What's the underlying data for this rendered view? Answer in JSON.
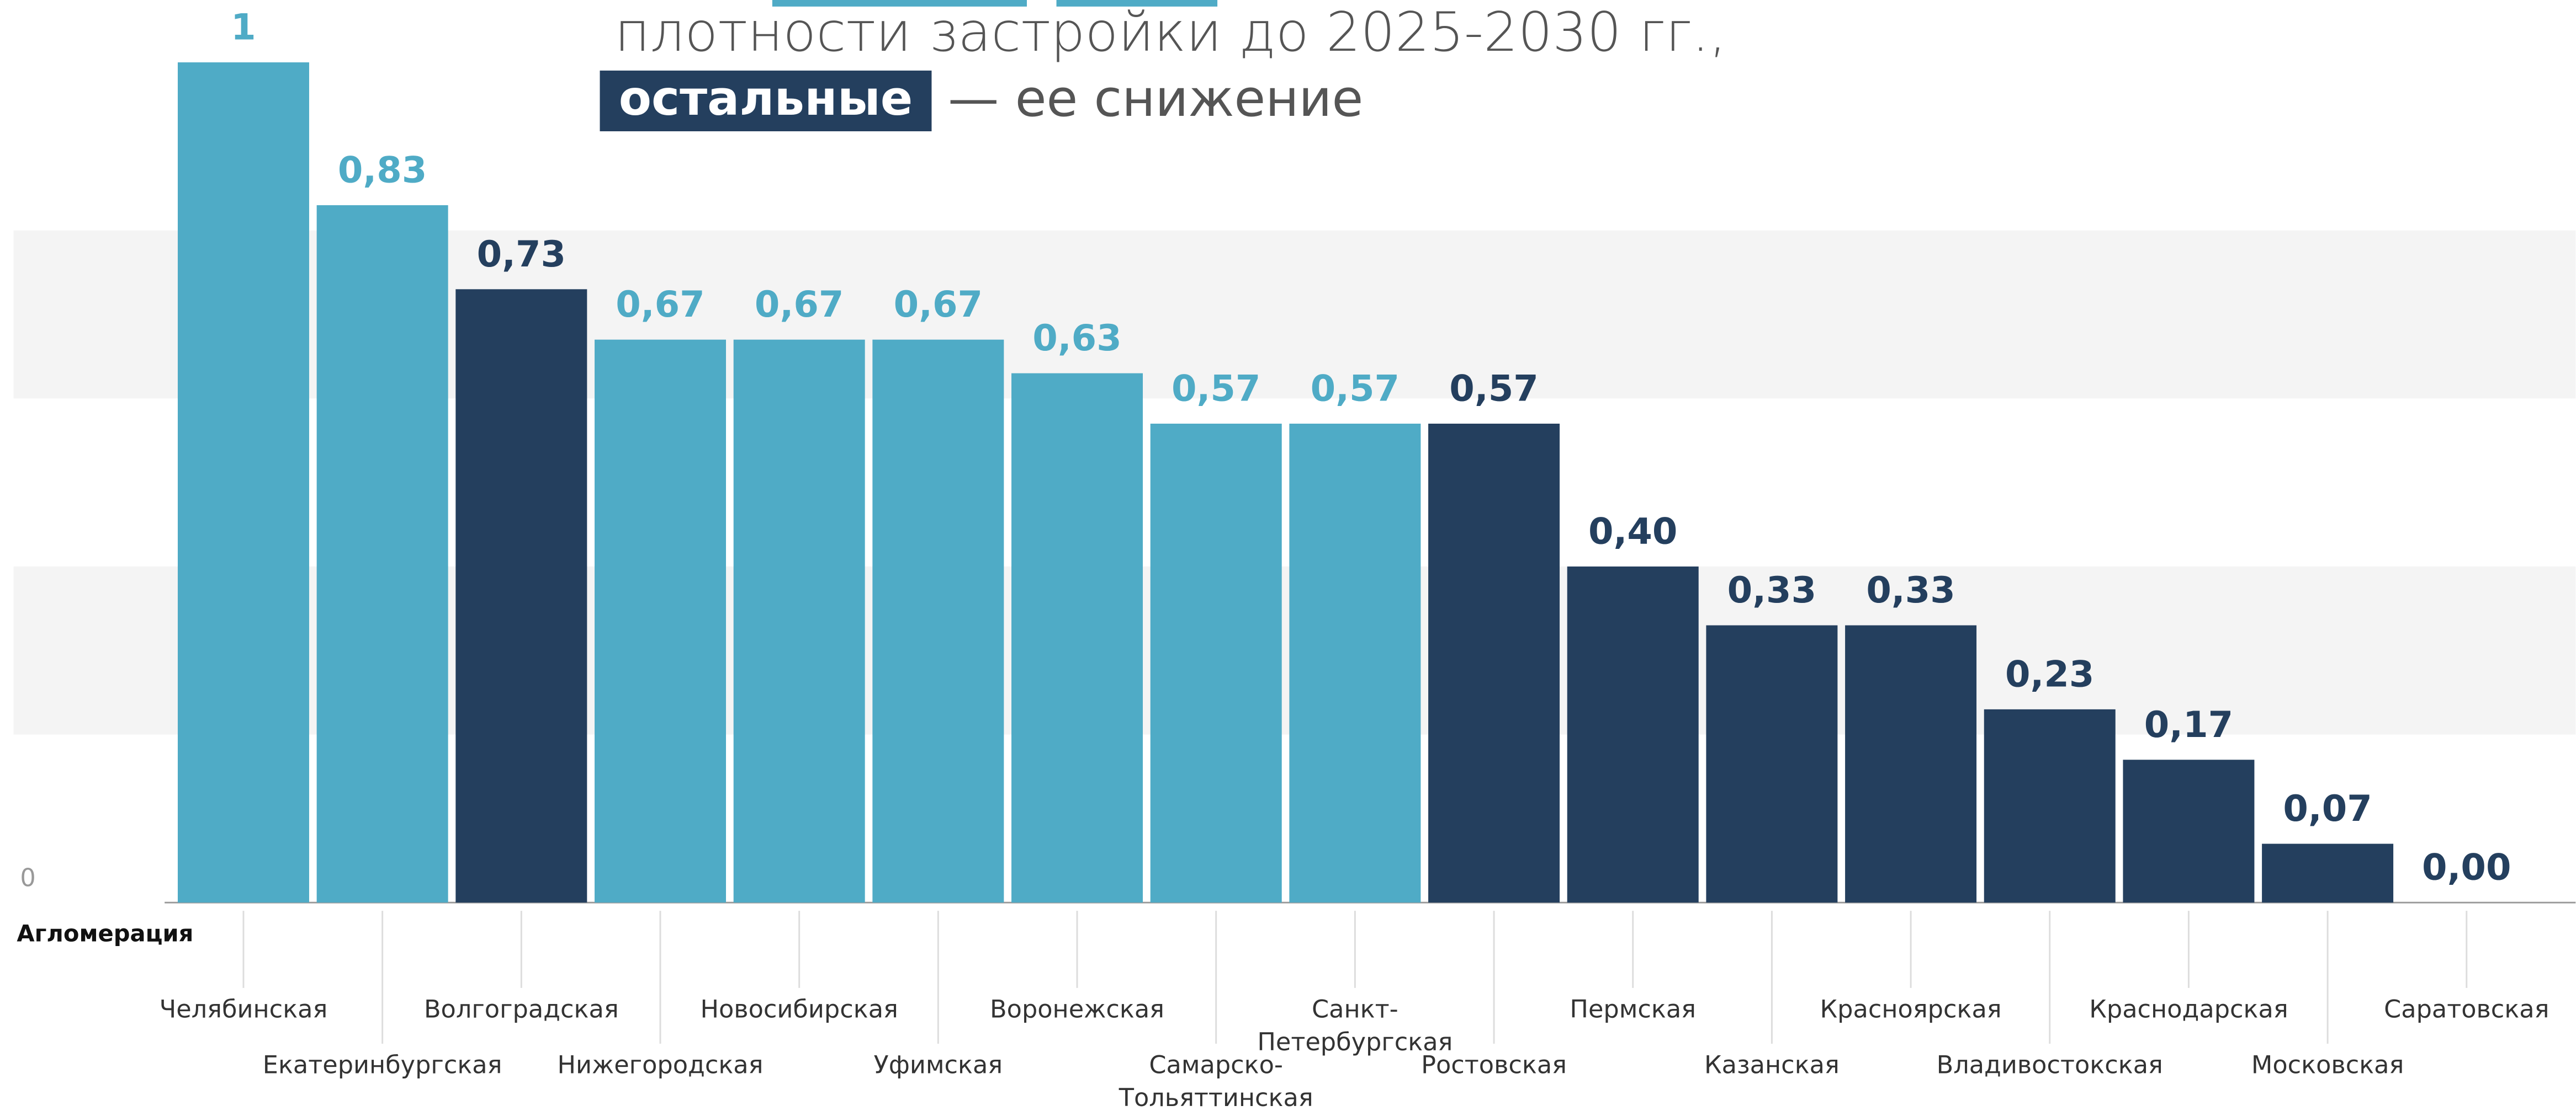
{
  "chart_data": {
    "type": "bar",
    "title_line": "плотности застройки до 2025-2030 гг.,",
    "title_highlight": "остальные",
    "title_rest": "— ее снижение",
    "x_label": "Агломерация",
    "categories": [
      "Челябинская",
      "Екатеринбургская",
      "Волгоградская",
      "Нижегородская",
      "Новосибирская",
      "Уфимская",
      "Воронежская",
      "Самарско-Тольяттинская",
      "Санкт-Петербургская",
      "Ростовская",
      "Пермская",
      "Казанская",
      "Красноярская",
      "Владивостокская",
      "Краснодарская",
      "Московская",
      "Саратовская"
    ],
    "values": [
      1,
      0.83,
      0.73,
      0.67,
      0.67,
      0.67,
      0.63,
      0.57,
      0.57,
      0.57,
      0.4,
      0.33,
      0.33,
      0.23,
      0.17,
      0.07,
      0.0
    ],
    "value_labels": [
      "1",
      "0,83",
      "0,73",
      "0,67",
      "0,67",
      "0,67",
      "0,63",
      "0,57",
      "0,57",
      "0,57",
      "0,40",
      "0,33",
      "0,33",
      "0,23",
      "0,17",
      "0,07",
      "0,00"
    ],
    "colors": [
      "#4fabc6",
      "#4fabc6",
      "#243f5e",
      "#4fabc6",
      "#4fabc6",
      "#4fabc6",
      "#4fabc6",
      "#4fabc6",
      "#4fabc6",
      "#243f5e",
      "#243f5e",
      "#243f5e",
      "#243f5e",
      "#243f5e",
      "#243f5e",
      "#243f5e",
      "#243f5e"
    ],
    "ylim": [
      0,
      1
    ],
    "yticks": [
      0
    ],
    "grid_bands": [
      [
        0.2,
        0.4
      ],
      [
        0.6,
        0.8
      ]
    ]
  }
}
